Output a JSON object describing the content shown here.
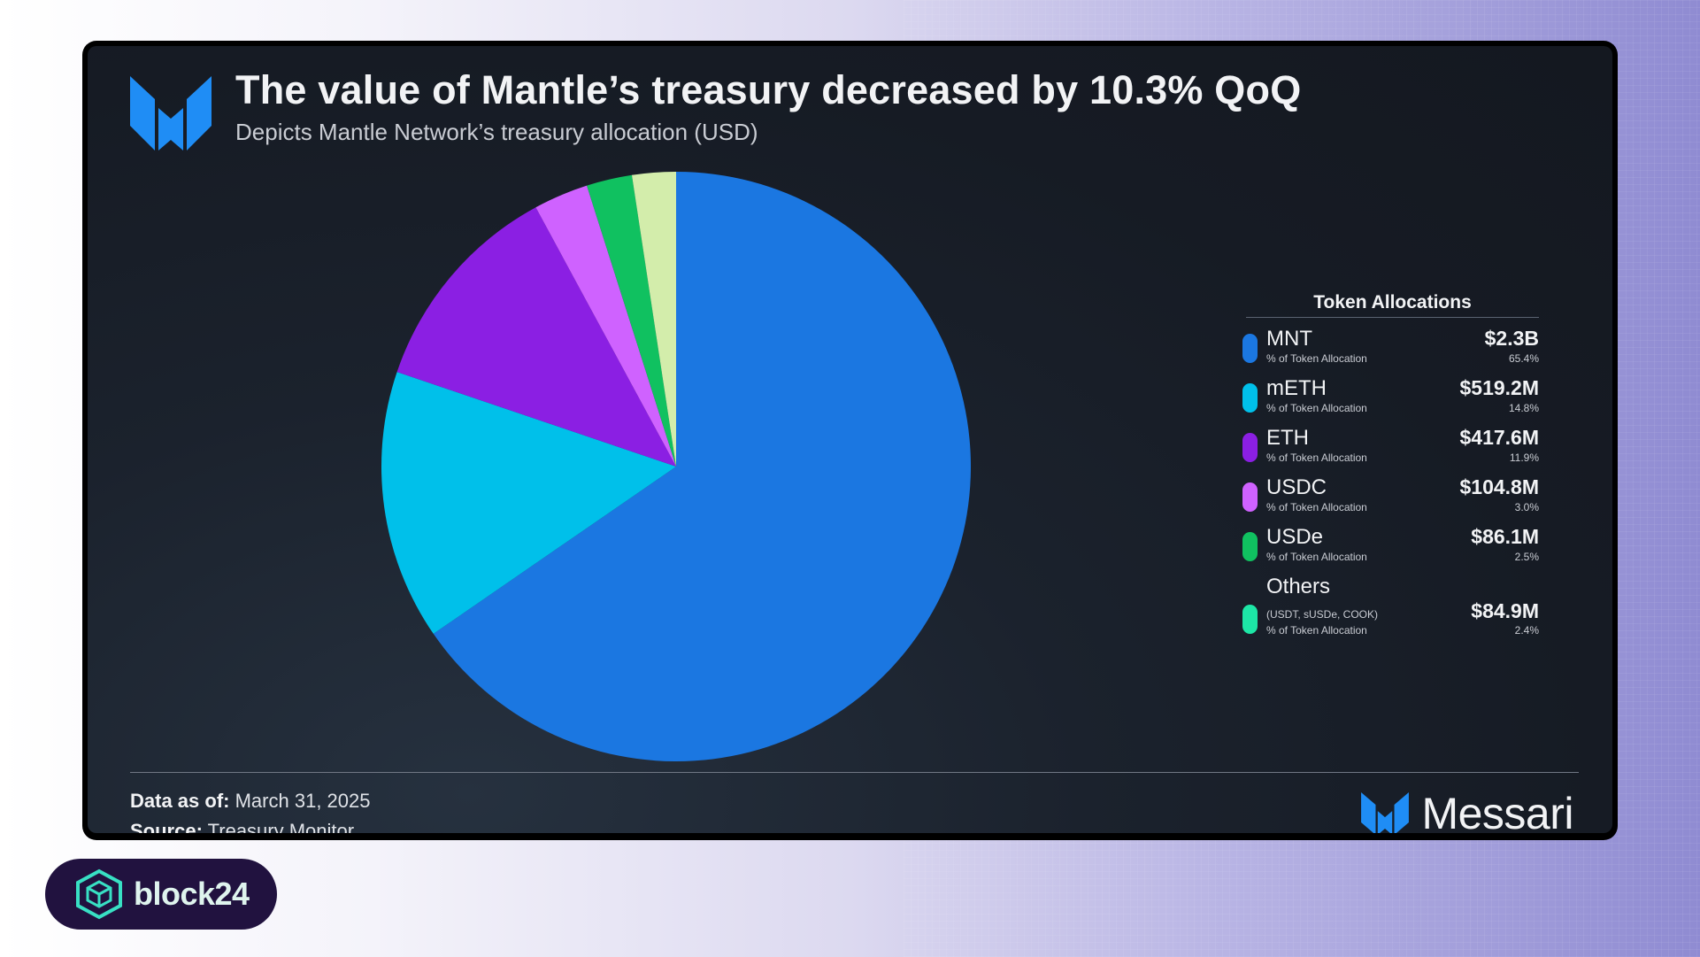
{
  "header": {
    "title": "The value of Mantle’s treasury decreased by 10.3% QoQ",
    "subtitle": "Depicts Mantle Network’s treasury allocation (USD)"
  },
  "legend": {
    "title": "Token Allocations",
    "sub_label": "% of Token Allocation",
    "items": [
      {
        "name": "MNT",
        "value": "$2.3B",
        "pct": "65.4%",
        "color": "#1b77e1"
      },
      {
        "name": "mETH",
        "value": "$519.2M",
        "pct": "14.8%",
        "color": "#00c0ea"
      },
      {
        "name": "ETH",
        "value": "$417.6M",
        "pct": "11.9%",
        "color": "#8b1fe3"
      },
      {
        "name": "USDC",
        "value": "$104.8M",
        "pct": "3.0%",
        "color": "#cf62ff"
      },
      {
        "name": "USDe",
        "value": "$86.1M",
        "pct": "2.5%",
        "color": "#10c160"
      },
      {
        "name": "Others",
        "note": "(USDT, sUSDe, COOK)",
        "value": "$84.9M",
        "pct": "2.4%",
        "color": "#1de6a6"
      }
    ]
  },
  "chart_data": {
    "type": "pie",
    "title": "The value of Mantle’s treasury decreased by 10.3% QoQ",
    "subtitle": "Depicts Mantle Network’s treasury allocation (USD)",
    "categories": [
      "MNT",
      "mETH",
      "ETH",
      "USDC",
      "USDe",
      "Others"
    ],
    "values": [
      65.4,
      14.8,
      11.9,
      3.0,
      2.5,
      2.4
    ],
    "amounts_usd": [
      "$2.3B",
      "$519.2M",
      "$417.6M",
      "$104.8M",
      "$86.1M",
      "$84.9M"
    ],
    "colors": [
      "#1b77e1",
      "#00c0ea",
      "#8b1fe3",
      "#cf62ff",
      "#10c160",
      "#d3edab"
    ],
    "start_angle": "12 o'clock, clockwise",
    "legend_position": "right"
  },
  "footer": {
    "data_as_of_label": "Data as of:",
    "data_as_of_value": "March 31, 2025",
    "source_label": "Source:",
    "source_value": "Treasury Monitor"
  },
  "brand": {
    "name": "Messari"
  },
  "watermark": {
    "name": "block24"
  }
}
